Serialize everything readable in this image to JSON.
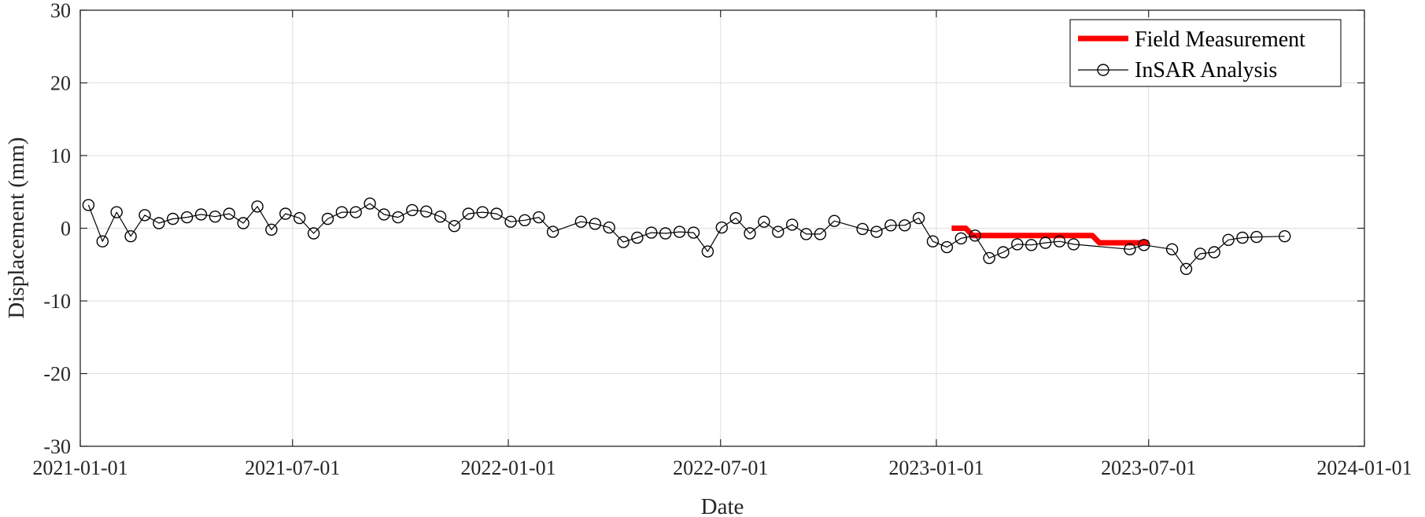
{
  "chart_data": {
    "type": "line",
    "title": "",
    "xlabel": "Date",
    "ylabel": "Displacement (mm)",
    "xlim": [
      "2021-01-01",
      "2024-01-01"
    ],
    "ylim": [
      -30,
      30
    ],
    "x_ticks": [
      "2021-01-01",
      "2021-07-01",
      "2022-01-01",
      "2022-07-01",
      "2023-01-01",
      "2023-07-01",
      "2024-01-01"
    ],
    "y_ticks": [
      -30,
      -20,
      -10,
      0,
      10,
      20,
      30
    ],
    "grid": true,
    "legend_position": "top-right",
    "series": [
      {
        "name": "Field Measurement",
        "color": "#ff0000",
        "style": "thick-line",
        "points": [
          [
            "2023-01-14",
            0
          ],
          [
            "2023-01-26",
            0
          ],
          [
            "2023-02-01",
            -1
          ],
          [
            "2023-05-14",
            -1
          ],
          [
            "2023-05-20",
            -2
          ],
          [
            "2023-07-01",
            -2
          ]
        ]
      },
      {
        "name": "InSAR Analysis",
        "color": "#000000",
        "style": "line-circle-markers",
        "points": [
          [
            "2021-01-08",
            3.2
          ],
          [
            "2021-01-20",
            -1.8
          ],
          [
            "2021-02-01",
            2.2
          ],
          [
            "2021-02-13",
            -1.1
          ],
          [
            "2021-02-25",
            1.8
          ],
          [
            "2021-03-09",
            0.7
          ],
          [
            "2021-03-21",
            1.3
          ],
          [
            "2021-04-02",
            1.5
          ],
          [
            "2021-04-14",
            1.9
          ],
          [
            "2021-04-26",
            1.6
          ],
          [
            "2021-05-08",
            2.0
          ],
          [
            "2021-05-20",
            0.7
          ],
          [
            "2021-06-01",
            3.0
          ],
          [
            "2021-06-13",
            -0.2
          ],
          [
            "2021-06-25",
            2.0
          ],
          [
            "2021-07-07",
            1.4
          ],
          [
            "2021-07-19",
            -0.7
          ],
          [
            "2021-07-31",
            1.3
          ],
          [
            "2021-08-12",
            2.2
          ],
          [
            "2021-08-24",
            2.2
          ],
          [
            "2021-09-05",
            3.4
          ],
          [
            "2021-09-17",
            1.9
          ],
          [
            "2021-09-29",
            1.5
          ],
          [
            "2021-10-11",
            2.5
          ],
          [
            "2021-10-23",
            2.3
          ],
          [
            "2021-11-04",
            1.6
          ],
          [
            "2021-11-16",
            0.3
          ],
          [
            "2021-11-28",
            2.0
          ],
          [
            "2021-12-10",
            2.2
          ],
          [
            "2021-12-22",
            2.0
          ],
          [
            "2022-01-03",
            0.9
          ],
          [
            "2022-01-15",
            1.1
          ],
          [
            "2022-01-27",
            1.5
          ],
          [
            "2022-02-08",
            -0.5
          ],
          [
            "2022-03-04",
            0.9
          ],
          [
            "2022-03-16",
            0.6
          ],
          [
            "2022-03-28",
            0.1
          ],
          [
            "2022-04-09",
            -1.9
          ],
          [
            "2022-04-21",
            -1.3
          ],
          [
            "2022-05-03",
            -0.6
          ],
          [
            "2022-05-15",
            -0.7
          ],
          [
            "2022-05-27",
            -0.5
          ],
          [
            "2022-06-08",
            -0.6
          ],
          [
            "2022-06-20",
            -3.2
          ],
          [
            "2022-07-02",
            0.1
          ],
          [
            "2022-07-14",
            1.4
          ],
          [
            "2022-07-26",
            -0.7
          ],
          [
            "2022-08-07",
            0.9
          ],
          [
            "2022-08-19",
            -0.5
          ],
          [
            "2022-08-31",
            0.5
          ],
          [
            "2022-09-12",
            -0.8
          ],
          [
            "2022-09-24",
            -0.8
          ],
          [
            "2022-10-06",
            1.0
          ],
          [
            "2022-10-30",
            -0.1
          ],
          [
            "2022-11-11",
            -0.5
          ],
          [
            "2022-11-23",
            0.4
          ],
          [
            "2022-12-05",
            0.4
          ],
          [
            "2022-12-17",
            1.4
          ],
          [
            "2022-12-29",
            -1.8
          ],
          [
            "2023-01-10",
            -2.6
          ],
          [
            "2023-01-22",
            -1.4
          ],
          [
            "2023-02-03",
            -1.0
          ],
          [
            "2023-02-15",
            -4.1
          ],
          [
            "2023-02-27",
            -3.3
          ],
          [
            "2023-03-11",
            -2.2
          ],
          [
            "2023-03-23",
            -2.3
          ],
          [
            "2023-04-04",
            -2.0
          ],
          [
            "2023-04-16",
            -1.8
          ],
          [
            "2023-04-28",
            -2.2
          ],
          [
            "2023-06-15",
            -2.9
          ],
          [
            "2023-06-27",
            -2.3
          ],
          [
            "2023-07-21",
            -2.9
          ],
          [
            "2023-08-02",
            -5.6
          ],
          [
            "2023-08-14",
            -3.5
          ],
          [
            "2023-08-26",
            -3.3
          ],
          [
            "2023-09-07",
            -1.6
          ],
          [
            "2023-09-19",
            -1.3
          ],
          [
            "2023-10-01",
            -1.2
          ],
          [
            "2023-10-25",
            -1.1
          ]
        ]
      }
    ]
  }
}
